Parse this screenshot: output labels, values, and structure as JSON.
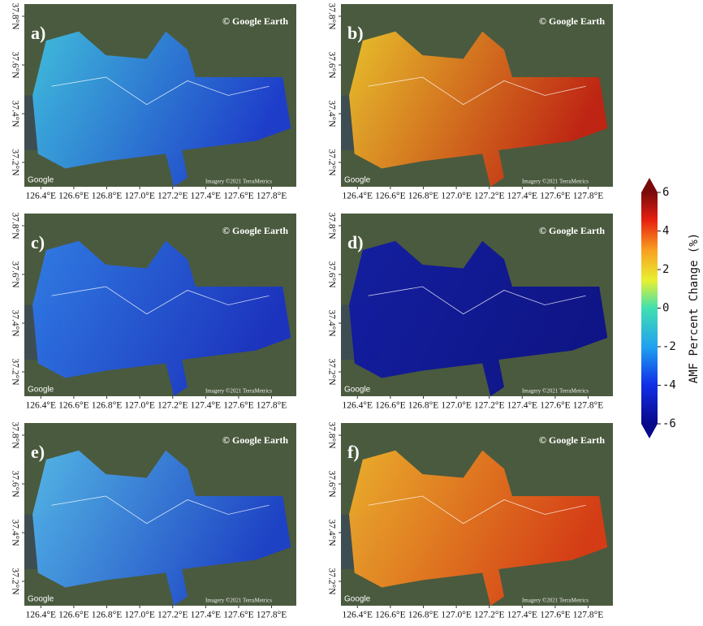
{
  "map_axes": {
    "xlim": [
      126.3,
      127.95
    ],
    "xticks": [
      {
        "value": 126.4,
        "label": "126.4°E"
      },
      {
        "value": 126.6,
        "label": "126.6°E"
      },
      {
        "value": 126.8,
        "label": "126.8°E"
      },
      {
        "value": 127.0,
        "label": "127.0°E"
      },
      {
        "value": 127.2,
        "label": "127.2°E"
      },
      {
        "value": 127.4,
        "label": "127.4°E"
      },
      {
        "value": 127.6,
        "label": "127.6°E"
      },
      {
        "value": 127.8,
        "label": "127.8°E"
      }
    ],
    "ylim": [
      37.1,
      37.85
    ],
    "yticks": [
      {
        "value": 37.2,
        "label": "37.2°N"
      },
      {
        "value": 37.4,
        "label": "37.4°N"
      },
      {
        "value": 37.6,
        "label": "37.6°N"
      },
      {
        "value": 37.8,
        "label": "37.8°N"
      }
    ]
  },
  "credits": {
    "source": "© Google Earth",
    "logo": "Google",
    "imagery": "Imagery ©2021 TerraMetrics"
  },
  "panels": [
    {
      "label": "a)",
      "colors": [
        "#3fc4e8",
        "#1a3bd6"
      ]
    },
    {
      "label": "b)",
      "colors": [
        "#f5c82a",
        "#c8200f"
      ]
    },
    {
      "label": "c)",
      "colors": [
        "#2e7ef0",
        "#1830c8"
      ]
    },
    {
      "label": "d)",
      "colors": [
        "#0f1aa8",
        "#0a0f8c"
      ]
    },
    {
      "label": "e)",
      "colors": [
        "#54bdf2",
        "#1a40d0"
      ]
    },
    {
      "label": "f)",
      "colors": [
        "#f7b52a",
        "#e03a12"
      ]
    }
  ],
  "colorbar": {
    "label": "AMF Percent Change (%)",
    "lim": [
      -6,
      6
    ],
    "ticks": [
      -6,
      -4,
      -2,
      0,
      2,
      4,
      6
    ]
  }
}
